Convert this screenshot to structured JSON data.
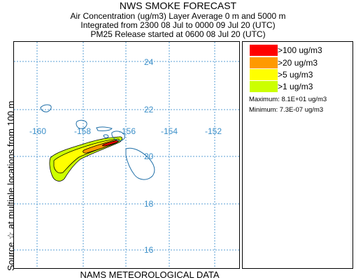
{
  "header": {
    "title": "NWS SMOKE FORECAST",
    "line1": "Air Concentration (ug/m3) Layer Average    0 m and  5000 m",
    "line2": "Integrated from 2300 08 Jul to 0000 09 Jul 20 (UTC)",
    "line3": "PM25 Release started at 0600 08 Jul 20 (UTC)"
  },
  "side_label": "Source ☆    at multiple locations        from   100 m",
  "bottom_label": "NAMS METEOROLOGICAL DATA",
  "map": {
    "lat_labels": [
      "24",
      "22",
      "20",
      "18",
      "16"
    ],
    "lon_labels": [
      "-160",
      "-158",
      "-156",
      "-154",
      "-152"
    ],
    "grid_color": "#5a9fd4",
    "label_color": "#3b8fc9"
  },
  "legend": {
    "items": [
      {
        "label": ">100 ug/m3",
        "color": "#ff0000"
      },
      {
        "label": ">20 ug/m3",
        "color": "#ff9900"
      },
      {
        "label": ">5 ug/m3",
        "color": "#ffff00"
      },
      {
        "label": ">1 ug/m3",
        "color": "#ccff00"
      }
    ],
    "maximum": "Maximum: 8.1E+01 ug/m3",
    "minimum": "Minimum: 7.3E-07 ug/m3"
  }
}
